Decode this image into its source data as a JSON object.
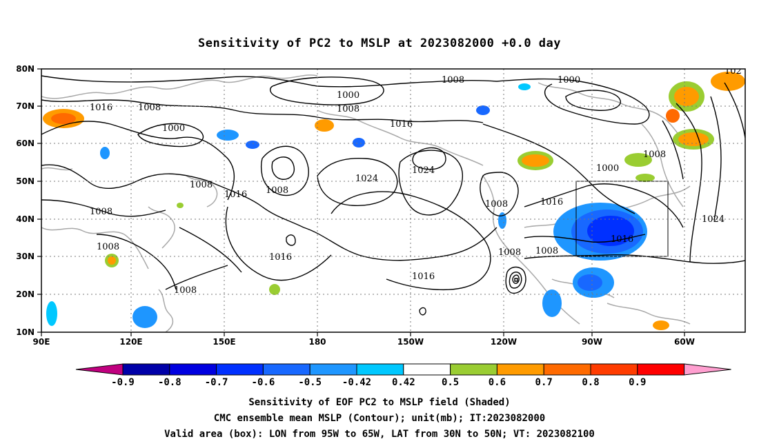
{
  "title": "Sensitivity of PC2 to MSLP at 2023082000 +0.0 day",
  "map": {
    "lon_ticks": [
      "90E",
      "120E",
      "150E",
      "180",
      "150W",
      "120W",
      "90W",
      "60W"
    ],
    "lat_ticks": [
      "80N",
      "70N",
      "60N",
      "50N",
      "40N",
      "30N",
      "20N",
      "10N"
    ],
    "lon_range": "90E to 50W",
    "lat_range": "10N to 80N",
    "grid": "dotted",
    "valid_box": {
      "lon": [
        "95W",
        "65W"
      ],
      "lat": [
        "30N",
        "50N"
      ]
    }
  },
  "contour_labels": [
    "1016",
    "1008",
    "1000",
    "1008",
    "1000",
    "1008",
    "1016",
    "1008",
    "1016",
    "1024",
    "1024",
    "1000",
    "1008",
    "1000",
    "1008",
    "1016",
    "1008",
    "1016",
    "1008",
    "1008",
    "1008",
    "1016",
    "1008",
    "1008",
    "1016",
    "1024",
    "102"
  ],
  "colorbar": {
    "labels": [
      "-0.9",
      "-0.8",
      "-0.7",
      "-0.6",
      "-0.5",
      "-0.42",
      "0.42",
      "0.5",
      "0.6",
      "0.7",
      "0.8",
      "0.9"
    ],
    "colors": [
      "#c0007f",
      "#0000a8",
      "#0000e0",
      "#0030ff",
      "#1868ff",
      "#1e96ff",
      "#00c8ff",
      "#ffffff",
      "#9acd32",
      "#ff9b00",
      "#ff6a00",
      "#ff3c00",
      "#ff0000",
      "#ff9fd0"
    ]
  },
  "captions": [
    "Sensitivity of EOF PC2 to MSLP field (Shaded)",
    "CMC ensemble mean MSLP (Contour); unit(mb); IT:2023082000",
    "Valid area (box): LON from 95W to 65W, LAT from 30N to 50N; VT: 2023082100"
  ]
}
